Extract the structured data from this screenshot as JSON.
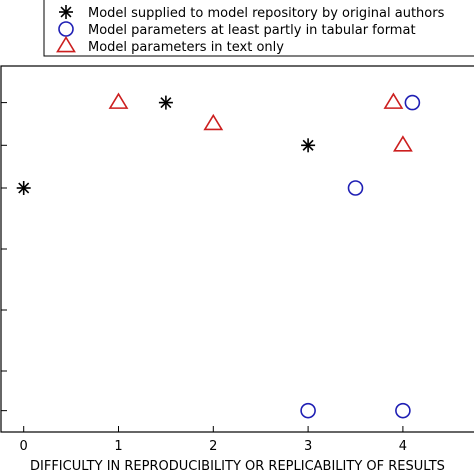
{
  "chart_data": {
    "type": "scatter",
    "xlabel": "DIFFICULTY IN REPRODUCIBILITY OR REPLICABILITY OF RESULTS",
    "ylabel": "",
    "xlim": [
      -0.25,
      4.75
    ],
    "x_ticks": [
      0,
      1,
      2,
      3,
      4
    ],
    "x_tick_labels": [
      "0",
      "1",
      "2",
      "3",
      "4"
    ],
    "ylim": [
      0,
      6
    ],
    "y_tick_values": [
      0.35,
      1.0,
      2.0,
      3.0,
      4.0,
      4.7,
      5.4
    ],
    "grid": false,
    "legend_placement": "top",
    "series": [
      {
        "name": "Model supplied to model repository by original authors",
        "marker": "asterisk",
        "color": "#000000",
        "points": [
          {
            "x": 0.0,
            "y": 4.0
          },
          {
            "x": 1.5,
            "y": 5.4
          },
          {
            "x": 3.0,
            "y": 4.7
          }
        ]
      },
      {
        "name": "Model parameters at least partly in tabular format",
        "marker": "circle",
        "color": "#1f1fb4",
        "points": [
          {
            "x": 4.1,
            "y": 5.4
          },
          {
            "x": 3.5,
            "y": 4.0
          },
          {
            "x": 3.0,
            "y": 0.35
          },
          {
            "x": 4.0,
            "y": 0.35
          }
        ]
      },
      {
        "name": "Model parameters in text only",
        "marker": "triangle",
        "color": "#cc1f1f",
        "points": [
          {
            "x": 1.0,
            "y": 5.4
          },
          {
            "x": 3.9,
            "y": 5.4
          },
          {
            "x": 2.0,
            "y": 5.05
          },
          {
            "x": 4.0,
            "y": 4.7
          }
        ]
      }
    ]
  }
}
